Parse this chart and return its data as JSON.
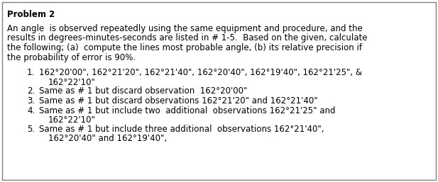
{
  "title": "Problem 2",
  "background_color": "#ffffff",
  "border_color": "#808080",
  "intro_text_lines": [
    "An angle  is observed repeatedly using the same equipment and procedure, and the",
    "results in degrees-minutes-seconds are listed in # 1-5.  Based on the given, calculate",
    "the following; (a)  compute the lines most probable angle, (b) its relative precision if",
    "the probability of error is 90%."
  ],
  "items": [
    {
      "num": "1.",
      "lines": [
        "162°20'00\", 162°21'20\", 162°21'40\", 162°20'40\", 162°19'40\", 162°21'25\", &",
        "162°22'10\""
      ]
    },
    {
      "num": "2.",
      "lines": [
        "Same as # 1 but discard observation  162°20'00\""
      ]
    },
    {
      "num": "3.",
      "lines": [
        "Same as # 1 but discard observations 162°21'20\" and 162°21'40\""
      ]
    },
    {
      "num": "4.",
      "lines": [
        "Same as # 1 but include two  additional  observations 162°21'25\" and",
        "162°22'10\""
      ]
    },
    {
      "num": "5.",
      "lines": [
        "Same as # 1 but include three additional  observations 162°21'40\",",
        "162°20'40\" and 162°19'40\","
      ]
    }
  ],
  "font_size": 8.5,
  "font_family": "Arial"
}
